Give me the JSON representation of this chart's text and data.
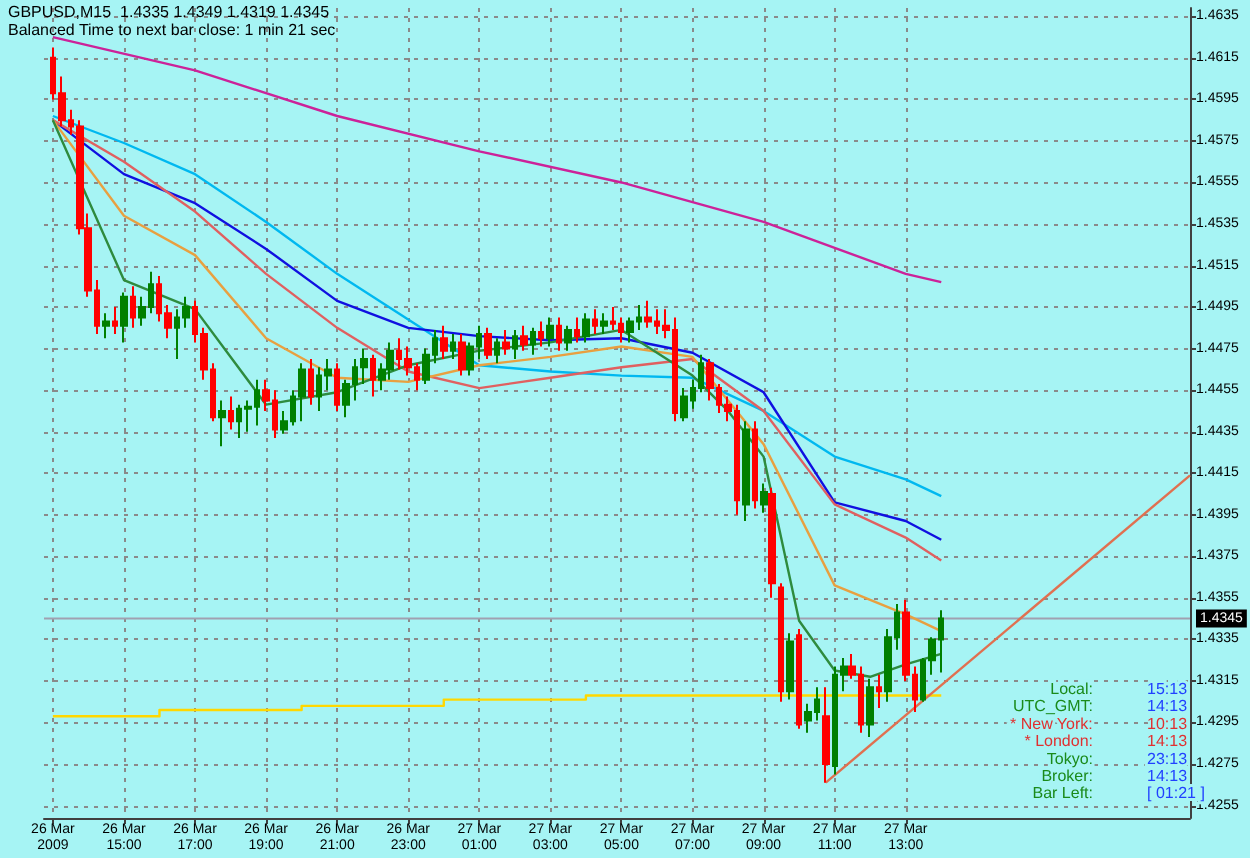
{
  "chart_data": {
    "type": "candlestick",
    "title": "GBPUSD,M15  1.4335 1.4349 1.4319 1.4345",
    "subtitle": "Balanced Time to next bar close: 1 min 21 sec",
    "x": [
      "2009-03-26T13:00",
      "2009-03-26T13:15",
      "2009-03-26T13:30",
      "2009-03-26T13:45",
      "2009-03-26T14:00",
      "2009-03-26T14:15",
      "2009-03-26T14:30",
      "2009-03-26T14:45",
      "2009-03-26T15:00",
      "2009-03-26T15:15",
      "2009-03-26T15:30",
      "2009-03-26T15:45",
      "2009-03-26T16:00",
      "2009-03-26T16:15",
      "2009-03-26T16:30",
      "2009-03-26T16:45",
      "2009-03-26T17:00",
      "2009-03-26T17:15",
      "2009-03-26T17:30",
      "2009-03-26T17:45",
      "2009-03-26T18:00",
      "2009-03-26T18:15",
      "2009-03-26T18:30",
      "2009-03-26T18:45",
      "2009-03-26T19:00",
      "2009-03-26T19:15",
      "2009-03-26T19:30",
      "2009-03-26T19:45",
      "2009-03-26T20:00",
      "2009-03-26T20:15",
      "2009-03-26T20:30",
      "2009-03-26T20:45",
      "2009-03-26T21:00",
      "2009-03-26T21:15",
      "2009-03-26T21:30",
      "2009-03-26T21:45",
      "2009-03-26T22:00",
      "2009-03-26T22:15",
      "2009-03-26T22:30",
      "2009-03-26T22:45",
      "2009-03-26T23:00",
      "2009-03-26T23:15",
      "2009-03-26T23:30",
      "2009-03-26T23:45",
      "2009-03-27T00:00",
      "2009-03-27T00:15",
      "2009-03-27T00:30",
      "2009-03-27T00:45",
      "2009-03-27T01:00",
      "2009-03-27T01:15",
      "2009-03-27T01:30",
      "2009-03-27T01:45",
      "2009-03-27T02:00",
      "2009-03-27T02:15",
      "2009-03-27T02:30",
      "2009-03-27T02:45",
      "2009-03-27T03:00",
      "2009-03-27T03:15",
      "2009-03-27T03:30",
      "2009-03-27T03:45",
      "2009-03-27T04:00",
      "2009-03-27T04:15",
      "2009-03-27T04:30",
      "2009-03-27T04:45",
      "2009-03-27T05:00",
      "2009-03-27T05:15",
      "2009-03-27T05:30",
      "2009-03-27T05:45",
      "2009-03-27T06:00",
      "2009-03-27T06:15",
      "2009-03-27T06:30",
      "2009-03-27T06:45",
      "2009-03-27T07:00",
      "2009-03-27T07:15",
      "2009-03-27T07:30",
      "2009-03-27T07:45",
      "2009-03-27T08:00",
      "2009-03-27T08:15",
      "2009-03-27T08:30",
      "2009-03-27T08:45",
      "2009-03-27T09:00",
      "2009-03-27T09:15",
      "2009-03-27T09:30",
      "2009-03-27T09:45",
      "2009-03-27T10:00",
      "2009-03-27T10:15",
      "2009-03-27T10:30",
      "2009-03-27T10:45",
      "2009-03-27T11:00",
      "2009-03-27T11:15",
      "2009-03-27T11:30",
      "2009-03-27T11:45",
      "2009-03-27T12:00",
      "2009-03-27T12:15",
      "2009-03-27T12:30",
      "2009-03-27T12:45",
      "2009-03-27T13:00",
      "2009-03-27T13:15",
      "2009-03-27T13:30",
      "2009-03-27T13:45",
      "2009-03-27T14:00"
    ],
    "ohlc": [
      [
        1.4615,
        1.462,
        1.4595,
        1.4598
      ],
      [
        1.4598,
        1.4606,
        1.4582,
        1.4585
      ],
      [
        1.4585,
        1.459,
        1.4578,
        1.4582
      ],
      [
        1.4582,
        1.4585,
        1.453,
        1.4533
      ],
      [
        1.4533,
        1.454,
        1.45,
        1.4503
      ],
      [
        1.4503,
        1.4508,
        1.4482,
        1.4486
      ],
      [
        1.4486,
        1.4492,
        1.448,
        1.4488
      ],
      [
        1.4488,
        1.4495,
        1.4482,
        1.4486
      ],
      [
        1.4486,
        1.4502,
        1.4478,
        1.45
      ],
      [
        1.45,
        1.4505,
        1.4485,
        1.449
      ],
      [
        1.449,
        1.45,
        1.4486,
        1.4495
      ],
      [
        1.4495,
        1.4512,
        1.4492,
        1.4506
      ],
      [
        1.4506,
        1.451,
        1.4488,
        1.4492
      ],
      [
        1.4492,
        1.4496,
        1.448,
        1.4485
      ],
      [
        1.4485,
        1.4494,
        1.447,
        1.449
      ],
      [
        1.449,
        1.45,
        1.4485,
        1.4495
      ],
      [
        1.4495,
        1.4498,
        1.4478,
        1.4482
      ],
      [
        1.4482,
        1.4485,
        1.446,
        1.4465
      ],
      [
        1.4465,
        1.4468,
        1.444,
        1.4442
      ],
      [
        1.4442,
        1.445,
        1.4428,
        1.4445
      ],
      [
        1.4445,
        1.4452,
        1.4436,
        1.444
      ],
      [
        1.444,
        1.4448,
        1.4432,
        1.4446
      ],
      [
        1.4446,
        1.445,
        1.4435,
        1.4447
      ],
      [
        1.4447,
        1.446,
        1.4438,
        1.4455
      ],
      [
        1.4455,
        1.446,
        1.4445,
        1.445
      ],
      [
        1.445,
        1.4455,
        1.4432,
        1.4436
      ],
      [
        1.4436,
        1.4445,
        1.4434,
        1.444
      ],
      [
        1.444,
        1.4455,
        1.4438,
        1.4452
      ],
      [
        1.4452,
        1.4468,
        1.444,
        1.4465
      ],
      [
        1.4465,
        1.447,
        1.4448,
        1.4452
      ],
      [
        1.4452,
        1.4466,
        1.4445,
        1.4462
      ],
      [
        1.4462,
        1.447,
        1.4455,
        1.4465
      ],
      [
        1.4465,
        1.4468,
        1.4445,
        1.4448
      ],
      [
        1.4448,
        1.446,
        1.4442,
        1.4458
      ],
      [
        1.4458,
        1.447,
        1.445,
        1.4466
      ],
      [
        1.4466,
        1.4475,
        1.4458,
        1.447
      ],
      [
        1.447,
        1.4472,
        1.4452,
        1.446
      ],
      [
        1.446,
        1.4468,
        1.4455,
        1.4465
      ],
      [
        1.4465,
        1.4478,
        1.446,
        1.4474
      ],
      [
        1.4474,
        1.448,
        1.4465,
        1.447
      ],
      [
        1.447,
        1.4476,
        1.4462,
        1.4466
      ],
      [
        1.4466,
        1.4468,
        1.4455,
        1.446
      ],
      [
        1.446,
        1.4475,
        1.4458,
        1.4472
      ],
      [
        1.4472,
        1.4484,
        1.4468,
        1.448
      ],
      [
        1.448,
        1.4486,
        1.447,
        1.4474
      ],
      [
        1.4474,
        1.4482,
        1.447,
        1.4478
      ],
      [
        1.4478,
        1.4482,
        1.4462,
        1.4465
      ],
      [
        1.4465,
        1.4478,
        1.4462,
        1.4476
      ],
      [
        1.4476,
        1.4486,
        1.447,
        1.4482
      ],
      [
        1.4482,
        1.4485,
        1.447,
        1.4472
      ],
      [
        1.4472,
        1.448,
        1.4468,
        1.4478
      ],
      [
        1.4478,
        1.4484,
        1.4472,
        1.4475
      ],
      [
        1.4475,
        1.4484,
        1.447,
        1.4481
      ],
      [
        1.4481,
        1.4486,
        1.4474,
        1.4477
      ],
      [
        1.4477,
        1.4485,
        1.4472,
        1.4483
      ],
      [
        1.4483,
        1.4488,
        1.4476,
        1.448
      ],
      [
        1.448,
        1.449,
        1.4476,
        1.4486
      ],
      [
        1.4486,
        1.449,
        1.4474,
        1.4478
      ],
      [
        1.4478,
        1.4486,
        1.4474,
        1.4484
      ],
      [
        1.4484,
        1.449,
        1.4478,
        1.4481
      ],
      [
        1.4481,
        1.4492,
        1.4478,
        1.4489
      ],
      [
        1.4489,
        1.4494,
        1.4482,
        1.4486
      ],
      [
        1.4486,
        1.4492,
        1.4482,
        1.4488
      ],
      [
        1.4488,
        1.4495,
        1.4484,
        1.4487
      ],
      [
        1.4487,
        1.449,
        1.4478,
        1.4483
      ],
      [
        1.4483,
        1.449,
        1.4478,
        1.4488
      ],
      [
        1.4488,
        1.4496,
        1.4484,
        1.449
      ],
      [
        1.449,
        1.4498,
        1.4485,
        1.4488
      ],
      [
        1.4488,
        1.4494,
        1.4482,
        1.4486
      ],
      [
        1.4486,
        1.4494,
        1.448,
        1.4484
      ],
      [
        1.4484,
        1.449,
        1.444,
        1.4444
      ],
      [
        1.4442,
        1.4456,
        1.444,
        1.4452
      ],
      [
        1.445,
        1.446,
        1.4446,
        1.4456
      ],
      [
        1.4456,
        1.4472,
        1.4454,
        1.4468
      ],
      [
        1.4468,
        1.447,
        1.445,
        1.4456
      ],
      [
        1.4456,
        1.4458,
        1.4444,
        1.4448
      ],
      [
        1.4448,
        1.4452,
        1.444,
        1.4445
      ],
      [
        1.4445,
        1.4448,
        1.4395,
        1.4402
      ],
      [
        1.44,
        1.444,
        1.4392,
        1.4436
      ],
      [
        1.4436,
        1.444,
        1.4398,
        1.4402
      ],
      [
        1.44,
        1.441,
        1.4396,
        1.4406
      ],
      [
        1.4405,
        1.4408,
        1.4355,
        1.4362
      ],
      [
        1.436,
        1.4362,
        1.4305,
        1.431
      ],
      [
        1.431,
        1.4338,
        1.4306,
        1.4334
      ],
      [
        1.4337,
        1.434,
        1.4292,
        1.4294
      ],
      [
        1.4296,
        1.4304,
        1.429,
        1.43
      ],
      [
        1.43,
        1.4312,
        1.4296,
        1.4306
      ],
      [
        1.4298,
        1.4312,
        1.4266,
        1.4275
      ],
      [
        1.4274,
        1.4322,
        1.427,
        1.4318
      ],
      [
        1.4318,
        1.4326,
        1.431,
        1.4322
      ],
      [
        1.4322,
        1.4328,
        1.4316,
        1.4318
      ],
      [
        1.4318,
        1.4322,
        1.429,
        1.4294
      ],
      [
        1.4294,
        1.4316,
        1.4288,
        1.4312
      ],
      [
        1.4312,
        1.4318,
        1.4302,
        1.431
      ],
      [
        1.431,
        1.434,
        1.4305,
        1.4336
      ],
      [
        1.4336,
        1.4352,
        1.433,
        1.4348
      ],
      [
        1.4348,
        1.4354,
        1.4315,
        1.4318
      ],
      [
        1.4318,
        1.4322,
        1.43,
        1.4306
      ],
      [
        1.4306,
        1.4326,
        1.4305,
        1.4325
      ],
      [
        1.4325,
        1.4336,
        1.4318,
        1.4335
      ],
      [
        1.4335,
        1.4349,
        1.4319,
        1.4345
      ]
    ],
    "colors": [
      "#ff0000",
      "#ff0000",
      "#ff0000",
      "#ff0000",
      "#ff0000",
      "#ff0000",
      "#008000",
      "#ff0000",
      "#008000",
      "#ff0000",
      "#008000",
      "#008000",
      "#ff0000",
      "#ff0000",
      "#008000",
      "#008000",
      "#ff0000",
      "#ff0000",
      "#ff0000",
      "#008000",
      "#ff0000",
      "#008000",
      "#008000",
      "#008000",
      "#ff0000",
      "#ff0000",
      "#008000",
      "#008000",
      "#008000",
      "#ff0000",
      "#008000",
      "#008000",
      "#ff0000",
      "#008000",
      "#008000",
      "#008000",
      "#ff0000",
      "#008000",
      "#008000",
      "#ff0000",
      "#ff0000",
      "#ff0000",
      "#008000",
      "#008000",
      "#ff0000",
      "#008000",
      "#ff0000",
      "#008000",
      "#008000",
      "#ff0000",
      "#008000",
      "#ff0000",
      "#008000",
      "#ff0000",
      "#008000",
      "#ff0000",
      "#008000",
      "#ff0000",
      "#008000",
      "#ff0000",
      "#008000",
      "#ff0000",
      "#008000",
      "#ff0000",
      "#ff0000",
      "#008000",
      "#008000",
      "#ff0000",
      "#ff0000",
      "#ff0000",
      "#ff0000",
      "#008000",
      "#008000",
      "#008000",
      "#ff0000",
      "#ff0000",
      "#ff0000",
      "#ff0000",
      "#008000",
      "#ff0000",
      "#008000",
      "#ff0000",
      "#ff0000",
      "#008000",
      "#ff0000",
      "#008000",
      "#008000",
      "#ff0000",
      "#008000",
      "#008000",
      "#ff0000",
      "#ff0000",
      "#008000",
      "#ff0000",
      "#008000",
      "#008000",
      "#ff0000",
      "#ff0000",
      "#008000",
      "#008000",
      "#008000"
    ],
    "series": [
      {
        "type": "line",
        "color": "#cc2299",
        "x": [
          "2009-03-26T13:00",
          "2009-03-26T17:00",
          "2009-03-26T21:00",
          "2009-03-27T01:00",
          "2009-03-27T05:00",
          "2009-03-27T09:00",
          "2009-03-27T13:00",
          "2009-03-27T14:00"
        ],
        "values": [
          1.4625,
          1.4609,
          1.4587,
          1.457,
          1.4555,
          1.4536,
          1.4511,
          1.4507
        ]
      },
      {
        "type": "line",
        "color": "#00b8f0",
        "x": [
          "2009-03-26T13:00",
          "2009-03-26T15:00",
          "2009-03-26T17:00",
          "2009-03-26T19:00",
          "2009-03-26T21:00",
          "2009-03-26T23:00",
          "2009-03-27T01:00",
          "2009-03-27T03:00",
          "2009-03-27T05:00",
          "2009-03-27T07:00",
          "2009-03-27T09:00",
          "2009-03-27T11:00",
          "2009-03-27T13:00",
          "2009-03-27T14:00"
        ],
        "values": [
          1.4587,
          1.4574,
          1.4559,
          1.4536,
          1.4511,
          1.4489,
          1.4467,
          1.4464,
          1.4462,
          1.4461,
          1.4445,
          1.4423,
          1.4412,
          1.4404
        ]
      },
      {
        "type": "line",
        "color": "#1010e0",
        "x": [
          "2009-03-26T13:00",
          "2009-03-26T15:00",
          "2009-03-26T17:00",
          "2009-03-26T19:00",
          "2009-03-26T21:00",
          "2009-03-26T23:00",
          "2009-03-27T01:00",
          "2009-03-27T03:00",
          "2009-03-27T05:00",
          "2009-03-27T07:00",
          "2009-03-27T09:00",
          "2009-03-27T11:00",
          "2009-03-27T13:00",
          "2009-03-27T14:00"
        ],
        "values": [
          1.4585,
          1.4559,
          1.4545,
          1.4523,
          1.4498,
          1.4485,
          1.4481,
          1.4479,
          1.448,
          1.4473,
          1.4454,
          1.4401,
          1.4392,
          1.4383
        ]
      },
      {
        "type": "line",
        "color": "#e06060",
        "x": [
          "2009-03-26T13:00",
          "2009-03-26T15:00",
          "2009-03-26T17:00",
          "2009-03-26T19:00",
          "2009-03-26T21:00",
          "2009-03-26T23:00",
          "2009-03-27T01:00",
          "2009-03-27T03:00",
          "2009-03-27T05:00",
          "2009-03-27T07:00",
          "2009-03-27T09:00",
          "2009-03-27T11:00",
          "2009-03-27T13:00",
          "2009-03-27T14:00"
        ],
        "values": [
          1.4585,
          1.4565,
          1.4541,
          1.4511,
          1.4485,
          1.4464,
          1.4456,
          1.4461,
          1.4466,
          1.447,
          1.4445,
          1.44,
          1.4384,
          1.4373
        ]
      },
      {
        "type": "line",
        "color": "#e8a040",
        "x": [
          "2009-03-26T13:00",
          "2009-03-26T15:00",
          "2009-03-26T17:00",
          "2009-03-26T19:00",
          "2009-03-26T21:00",
          "2009-03-26T23:00",
          "2009-03-27T01:00",
          "2009-03-27T03:00",
          "2009-03-27T05:00",
          "2009-03-27T07:00",
          "2009-03-27T09:00",
          "2009-03-27T11:00",
          "2009-03-27T13:00",
          "2009-03-27T14:00"
        ],
        "values": [
          1.4585,
          1.4539,
          1.452,
          1.448,
          1.4461,
          1.4459,
          1.4467,
          1.4471,
          1.4476,
          1.4471,
          1.4429,
          1.4361,
          1.4347,
          1.4339
        ]
      },
      {
        "type": "line",
        "color": "#2e8b3e",
        "x": [
          "2009-03-26T13:00",
          "2009-03-26T15:00",
          "2009-03-26T17:00",
          "2009-03-26T19:00",
          "2009-03-26T21:00",
          "2009-03-26T23:00",
          "2009-03-27T01:00",
          "2009-03-27T03:00",
          "2009-03-27T05:00",
          "2009-03-27T07:00",
          "2009-03-27T08:00",
          "2009-03-27T09:00",
          "2009-03-27T10:00",
          "2009-03-27T11:00",
          "2009-03-27T12:00",
          "2009-03-27T13:00",
          "2009-03-27T14:00"
        ],
        "values": [
          1.4585,
          1.4508,
          1.4494,
          1.4448,
          1.4454,
          1.4467,
          1.4474,
          1.4478,
          1.4484,
          1.4462,
          1.4445,
          1.4423,
          1.4344,
          1.432,
          1.4317,
          1.4323,
          1.4328
        ]
      },
      {
        "type": "step",
        "color": "#ffd700",
        "x": [
          "2009-03-26T13:00",
          "2009-03-26T16:00",
          "2009-03-26T20:00",
          "2009-03-27T00:00",
          "2009-03-27T04:00",
          "2009-03-27T14:00"
        ],
        "values": [
          1.4298,
          1.4301,
          1.4303,
          1.4306,
          1.4308,
          1.4308
        ]
      },
      {
        "type": "line",
        "color": "#e07050",
        "x": [
          "2009-03-27T10:45",
          "2009-03-27T21:00"
        ],
        "values": [
          1.4266,
          1.4414
        ]
      }
    ],
    "xlim": [
      "2009-03-26T12:45",
      "2009-03-27T21:00"
    ],
    "xticks": [
      {
        "value": "2009-03-26T13:00",
        "label": "26 Mar 2009"
      },
      {
        "value": "2009-03-26T15:00",
        "label": "26 Mar 15:00"
      },
      {
        "value": "2009-03-26T17:00",
        "label": "26 Mar 17:00"
      },
      {
        "value": "2009-03-26T19:00",
        "label": "26 Mar 19:00"
      },
      {
        "value": "2009-03-26T21:00",
        "label": "26 Mar 21:00"
      },
      {
        "value": "2009-03-26T23:00",
        "label": "26 Mar 23:00"
      },
      {
        "value": "2009-03-27T01:00",
        "label": "27 Mar 01:00"
      },
      {
        "value": "2009-03-27T03:00",
        "label": "27 Mar 03:00"
      },
      {
        "value": "2009-03-27T05:00",
        "label": "27 Mar 05:00"
      },
      {
        "value": "2009-03-27T07:00",
        "label": "27 Mar 07:00"
      },
      {
        "value": "2009-03-27T09:00",
        "label": "27 Mar 09:00"
      },
      {
        "value": "2009-03-27T11:00",
        "label": "27 Mar 11:00"
      },
      {
        "value": "2009-03-27T13:00",
        "label": "27 Mar 13:00"
      }
    ],
    "ylim": [
      1.4249,
      1.4639
    ],
    "yticks": [
      1.4255,
      1.4275,
      1.4295,
      1.4315,
      1.4335,
      1.4355,
      1.4375,
      1.4395,
      1.4415,
      1.4435,
      1.4455,
      1.4475,
      1.4495,
      1.4515,
      1.4535,
      1.4555,
      1.4575,
      1.4595,
      1.4615,
      1.4635
    ],
    "ref_lines": [
      {
        "axis": "y",
        "value": 1.4345,
        "label": "1.4345",
        "color": "#a0a0b0"
      }
    ],
    "annotations": [
      "Local:",
      "15:13",
      "UTC_GMT:",
      "14:13",
      "* New York:",
      "10:13",
      "* London:",
      "14:13",
      "Tokyo:",
      "23:13",
      "Broker:",
      "14:13",
      "Bar Left:",
      "[ 01:21 ]"
    ],
    "grid": true,
    "marker": "none"
  }
}
